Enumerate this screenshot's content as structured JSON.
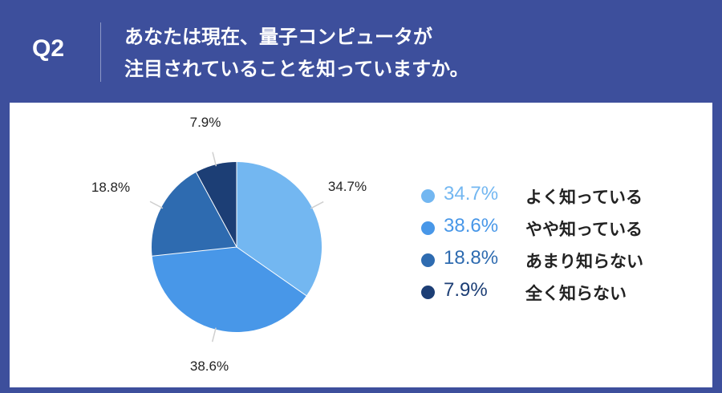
{
  "header": {
    "q_label": "Q2",
    "question_line1": "あなたは現在、量子コンピュータが",
    "question_line2": "注目されていることを知っていますか。"
  },
  "chart_data": {
    "type": "pie",
    "start_angle_deg": 0,
    "direction": "clockwise",
    "slices": [
      {
        "label": "よく知っている",
        "value": 34.7,
        "display": "34.7%",
        "color": "#73b7f1"
      },
      {
        "label": "やや知っている",
        "value": 38.6,
        "display": "38.6%",
        "color": "#4897e8"
      },
      {
        "label": "あまり知らない",
        "value": 18.8,
        "display": "18.8%",
        "color": "#2e6bb0"
      },
      {
        "label": "全く知らない",
        "value": 7.9,
        "display": "7.9%",
        "color": "#1c3e75"
      }
    ],
    "legend_placement": "right"
  },
  "colors": {
    "frame": "#3d4f9c",
    "panel": "#ffffff",
    "leader_line": "#cfcfcf"
  }
}
